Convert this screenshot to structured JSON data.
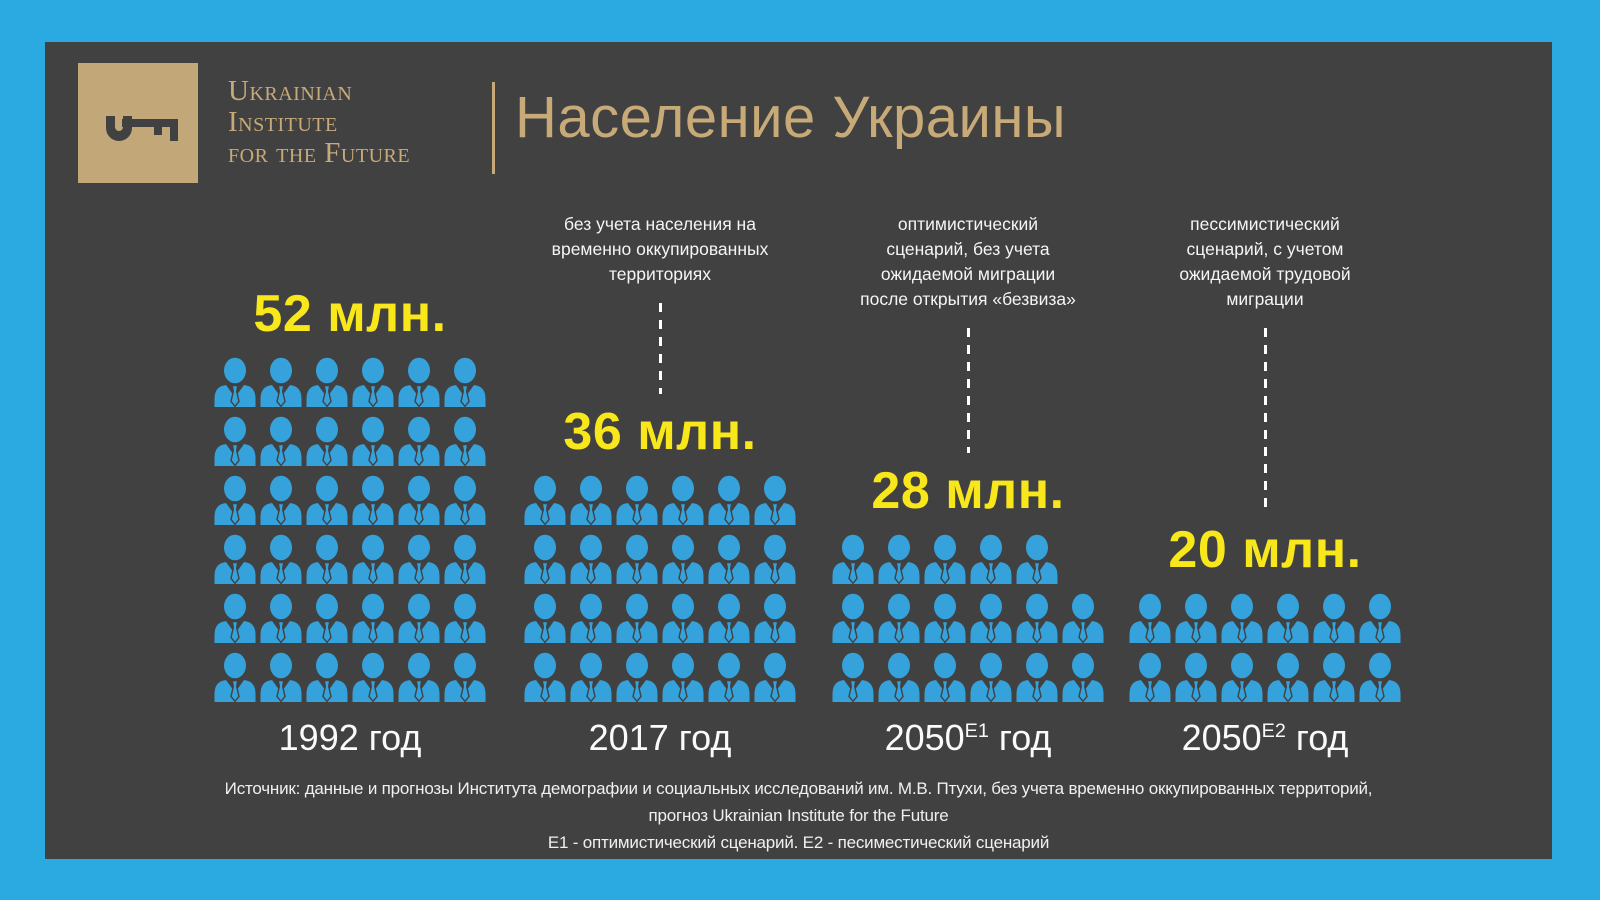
{
  "colors": {
    "frame": "#2BA9E1",
    "panel": "#414141",
    "logo_tan": "#C2A878",
    "gold": "#C8AA79",
    "yellow": "#F8E71A",
    "person_blue": "#36A2DB",
    "text_white": "#FAFAFA"
  },
  "header": {
    "logo_icon": "key-icon",
    "logo_lines": [
      "Ukrainian",
      "Institute",
      "for the Future"
    ],
    "title": "Население Украины"
  },
  "groups": [
    {
      "id": "1992",
      "annotation": "",
      "value_label": "52 млн.",
      "value_mln": 52,
      "year": "1992",
      "year_sup": "",
      "year_suffix": " год",
      "rows": [
        6,
        6,
        6,
        6,
        6,
        6
      ]
    },
    {
      "id": "2017",
      "annotation": "без учета населения на\nвременно оккупированных\nтерриториях",
      "value_label": "36 млн.",
      "value_mln": 36,
      "year": "2017",
      "year_sup": "",
      "year_suffix": " год",
      "rows": [
        6,
        6,
        6,
        6
      ]
    },
    {
      "id": "2050-e1",
      "annotation": "оптимистический\nсценарий, без учета\nожидаемой миграции\nпосле открытия «безвиза»",
      "value_label": "28 млн.",
      "value_mln": 28,
      "year": "2050",
      "year_sup": "Е1",
      "year_suffix": " год",
      "rows": [
        5,
        6,
        6
      ]
    },
    {
      "id": "2050-e2",
      "annotation": "пессимистический\nсценарий, с учетом\nожидаемой трудовой\nмиграции",
      "value_label": "20 млн.",
      "value_mln": 20,
      "year": "2050",
      "year_sup": "Е2",
      "year_suffix": " год",
      "rows": [
        6,
        6
      ]
    }
  ],
  "footer": {
    "lines": [
      "Источник:  данные и прогнозы  Института демографии и социальных исследований им. М.В. Птухи, без учета временно оккупированных территорий,",
      "прогноз Ukrainian Institute for the Future",
      "Е1 - оптимистический сценарий. Е2 - песиместический сценарий"
    ]
  },
  "chart_data": {
    "type": "bar",
    "variant": "pictogram",
    "title": "Население Украины",
    "unit": "млн человек",
    "categories": [
      "1992 год",
      "2017 год",
      "2050 год (Е1)",
      "2050 год (Е2)"
    ],
    "values": [
      52,
      36,
      28,
      20
    ],
    "icons_per_group": [
      36,
      24,
      17,
      12
    ],
    "icon_rows_per_group": [
      [
        6,
        6,
        6,
        6,
        6,
        6
      ],
      [
        6,
        6,
        6,
        6
      ],
      [
        5,
        6,
        6
      ],
      [
        6,
        6
      ]
    ],
    "annotations": [
      "",
      "без учета населения на временно оккупированных территориях",
      "оптимистический сценарий, без учета ожидаемой миграции после открытия «безвиза»",
      "пессимистический сценарий, с учетом ожидаемой трудовой миграции"
    ],
    "legend_position": "none",
    "grid": false,
    "source": "данные и прогнозы Института демографии и социальных исследований им. М.В. Птухи, без учета временно оккупированных территорий, прогноз Ukrainian Institute for the Future. Е1 - оптимистический сценарий. Е2 - песиместический сценарий"
  }
}
